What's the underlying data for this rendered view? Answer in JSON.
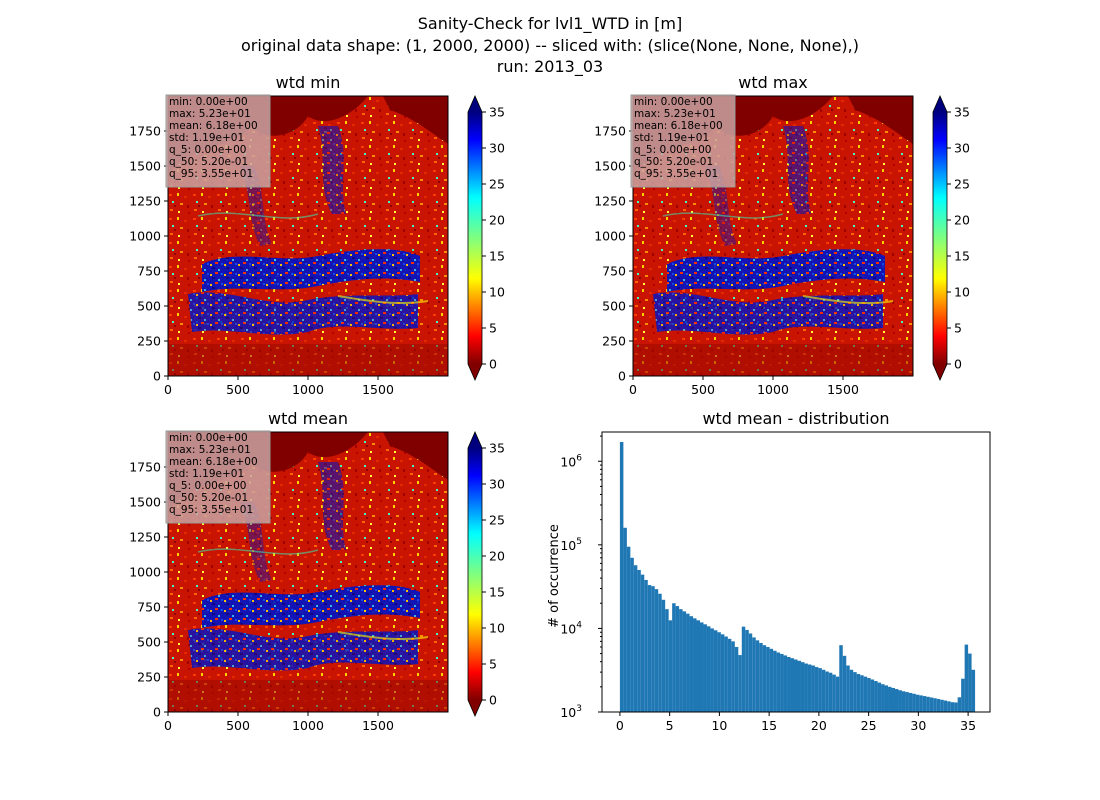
{
  "figure": {
    "title_lines": [
      "Sanity-Check for lvl1_WTD in [m]",
      "original data shape: (1, 2000, 2000) -- sliced with: (slice(None, None, None),)",
      "run: 2013_03"
    ]
  },
  "stats_box": [
    "min: 0.00e+00",
    "max: 5.23e+01",
    "mean: 6.18e+00",
    "std: 1.19e+01",
    "q_5: 0.00e+00",
    "q_50: 5.20e-01",
    "q_95: 3.55e+01"
  ],
  "chart_data": [
    {
      "type": "heatmap",
      "title": "wtd min",
      "colormap": "jet_r",
      "xlim": [
        0,
        2000
      ],
      "ylim": [
        0,
        2000
      ],
      "xticks": [
        0,
        500,
        1000,
        1500
      ],
      "yticks": [
        0,
        250,
        500,
        750,
        1000,
        1250,
        1500,
        1750
      ],
      "colorbar": {
        "min": 0,
        "max": 35,
        "ticks": [
          0,
          5,
          10,
          15,
          20,
          25,
          30,
          35
        ],
        "extend": "both"
      }
    },
    {
      "type": "heatmap",
      "title": "wtd max",
      "colormap": "jet_r",
      "xlim": [
        0,
        2000
      ],
      "ylim": [
        0,
        2000
      ],
      "xticks": [
        0,
        500,
        1000,
        1500
      ],
      "yticks": [
        0,
        250,
        500,
        750,
        1000,
        1250,
        1500,
        1750
      ],
      "colorbar": {
        "min": 0,
        "max": 35,
        "ticks": [
          0,
          5,
          10,
          15,
          20,
          25,
          30,
          35
        ],
        "extend": "both"
      }
    },
    {
      "type": "heatmap",
      "title": "wtd mean",
      "colormap": "jet_r",
      "xlim": [
        0,
        2000
      ],
      "ylim": [
        0,
        2000
      ],
      "xticks": [
        0,
        500,
        1000,
        1500
      ],
      "yticks": [
        0,
        250,
        500,
        750,
        1000,
        1250,
        1500,
        1750
      ],
      "colorbar": {
        "min": 0,
        "max": 35,
        "ticks": [
          0,
          5,
          10,
          15,
          20,
          25,
          30,
          35
        ],
        "extend": "both"
      }
    },
    {
      "type": "bar",
      "title": "wtd mean - distribution",
      "ylabel": "# of occurrence",
      "yscale": "log",
      "xlim": [
        -1.8,
        37.2
      ],
      "ylim_exp": [
        3,
        6.35
      ],
      "xticks": [
        0,
        5,
        10,
        15,
        20,
        25,
        30,
        35
      ],
      "yticks_exp": [
        3,
        4,
        5,
        6
      ],
      "bar_color": "#1f77b4",
      "bin_width": 0.35,
      "bins": [
        [
          0.0,
          1700000
        ],
        [
          0.35,
          160000
        ],
        [
          0.7,
          95000
        ],
        [
          1.05,
          70000
        ],
        [
          1.4,
          57000
        ],
        [
          1.75,
          50000
        ],
        [
          2.1,
          44000
        ],
        [
          2.45,
          38000
        ],
        [
          2.8,
          33000
        ],
        [
          3.15,
          32000
        ],
        [
          3.5,
          29500
        ],
        [
          3.85,
          26000
        ],
        [
          4.2,
          22000
        ],
        [
          4.55,
          17000
        ],
        [
          4.9,
          12500
        ],
        [
          5.25,
          20000
        ],
        [
          5.6,
          18500
        ],
        [
          5.95,
          17000
        ],
        [
          6.3,
          16000
        ],
        [
          6.65,
          15000
        ],
        [
          7.0,
          14000
        ],
        [
          7.35,
          13200
        ],
        [
          7.7,
          12500
        ],
        [
          8.05,
          11800
        ],
        [
          8.4,
          11200
        ],
        [
          8.75,
          10600
        ],
        [
          9.1,
          10000
        ],
        [
          9.45,
          9500
        ],
        [
          9.8,
          9000
        ],
        [
          10.15,
          8500
        ],
        [
          10.5,
          8000
        ],
        [
          10.85,
          7500
        ],
        [
          11.2,
          7000
        ],
        [
          11.55,
          6000
        ],
        [
          11.9,
          4800
        ],
        [
          12.25,
          10500
        ],
        [
          12.6,
          9600
        ],
        [
          12.95,
          8700
        ],
        [
          13.3,
          7800
        ],
        [
          13.65,
          7200
        ],
        [
          14.0,
          6700
        ],
        [
          14.35,
          6300
        ],
        [
          14.7,
          6000
        ],
        [
          15.05,
          5700
        ],
        [
          15.4,
          5400
        ],
        [
          15.75,
          5150
        ],
        [
          16.1,
          4950
        ],
        [
          16.45,
          4750
        ],
        [
          16.8,
          4550
        ],
        [
          17.15,
          4400
        ],
        [
          17.5,
          4250
        ],
        [
          17.85,
          4100
        ],
        [
          18.2,
          3950
        ],
        [
          18.55,
          3800
        ],
        [
          18.9,
          3700
        ],
        [
          19.25,
          3600
        ],
        [
          19.6,
          3450
        ],
        [
          19.95,
          3350
        ],
        [
          20.3,
          3200
        ],
        [
          20.65,
          3050
        ],
        [
          21.0,
          2950
        ],
        [
          21.35,
          2800
        ],
        [
          21.7,
          2650
        ],
        [
          22.05,
          6300
        ],
        [
          22.4,
          4700
        ],
        [
          22.75,
          3600
        ],
        [
          23.1,
          3200
        ],
        [
          23.45,
          3000
        ],
        [
          23.8,
          2850
        ],
        [
          24.15,
          2750
        ],
        [
          24.5,
          2650
        ],
        [
          24.85,
          2550
        ],
        [
          25.2,
          2450
        ],
        [
          25.55,
          2350
        ],
        [
          25.9,
          2250
        ],
        [
          26.25,
          2150
        ],
        [
          26.6,
          2080
        ],
        [
          26.95,
          2000
        ],
        [
          27.3,
          1940
        ],
        [
          27.65,
          1880
        ],
        [
          28.0,
          1820
        ],
        [
          28.35,
          1770
        ],
        [
          28.7,
          1730
        ],
        [
          29.05,
          1690
        ],
        [
          29.4,
          1650
        ],
        [
          29.75,
          1610
        ],
        [
          30.1,
          1580
        ],
        [
          30.45,
          1550
        ],
        [
          30.8,
          1520
        ],
        [
          31.15,
          1490
        ],
        [
          31.5,
          1460
        ],
        [
          31.85,
          1430
        ],
        [
          32.2,
          1400
        ],
        [
          32.55,
          1370
        ],
        [
          32.9,
          1340
        ],
        [
          33.25,
          1310
        ],
        [
          33.6,
          1300
        ],
        [
          33.95,
          1500
        ],
        [
          34.3,
          2500
        ],
        [
          34.65,
          6400
        ],
        [
          35.0,
          5000
        ],
        [
          35.35,
          3200
        ]
      ]
    }
  ]
}
